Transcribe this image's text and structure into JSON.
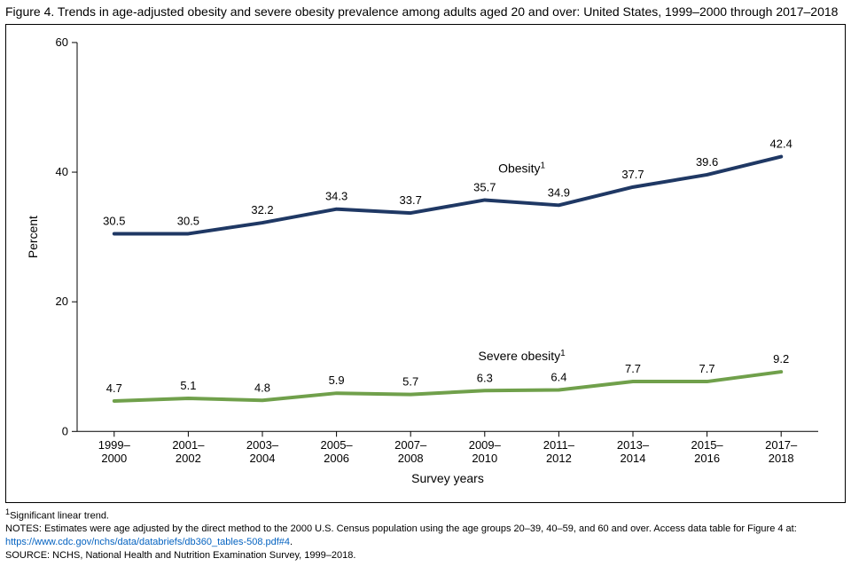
{
  "title": "Figure 4. Trends in age-adjusted obesity and severe obesity prevalence among adults aged 20 and over: United States, 1999–2000 through 2017–2018",
  "chart": {
    "type": "line",
    "background_color": "#ffffff",
    "border_color": "#000000",
    "ylabel": "Percent",
    "xlabel": "Survey years",
    "label_fontsize": 14,
    "tick_fontsize": 13,
    "data_label_fontsize": 13,
    "ylim": [
      0,
      60
    ],
    "ytick_step": 20,
    "yticks": [
      0,
      20,
      40,
      60
    ],
    "x_categories": [
      "1999–\n2000",
      "2001–\n2002",
      "2003–\n2004",
      "2005–\n2006",
      "2007–\n2008",
      "2009–\n2010",
      "2011–\n2012",
      "2013–\n2014",
      "2015–\n2016",
      "2017–\n2018"
    ],
    "axis_color": "#000000",
    "tick_length": 6,
    "line_width": 4,
    "series": [
      {
        "name": "Obesity",
        "label_suffix": "1",
        "color": "#1f3864",
        "values": [
          30.5,
          30.5,
          32.2,
          34.3,
          33.7,
          35.7,
          34.9,
          37.7,
          39.6,
          42.4
        ],
        "series_label_after_index": 5
      },
      {
        "name": "Severe obesity",
        "label_suffix": "1",
        "color": "#70a04b",
        "values": [
          4.7,
          5.1,
          4.8,
          5.9,
          5.7,
          6.3,
          6.4,
          7.7,
          7.7,
          9.2
        ],
        "series_label_after_index": 5
      }
    ]
  },
  "footnote_marker": "1",
  "footnote_text": "Significant linear trend.",
  "notes_prefix": "NOTES: Estimates were age adjusted by the direct method to the 2000 U.S. Census population using the age groups 20–39, 40–59, and 60 and over. Access data table for Figure 4 at: ",
  "notes_link_text": "https://www.cdc.gov/nchs/data/databriefs/db360_tables-508.pdf#4",
  "notes_suffix": ".",
  "source_text": "SOURCE: NCHS, National Health and Nutrition Examination Survey, 1999–2018."
}
